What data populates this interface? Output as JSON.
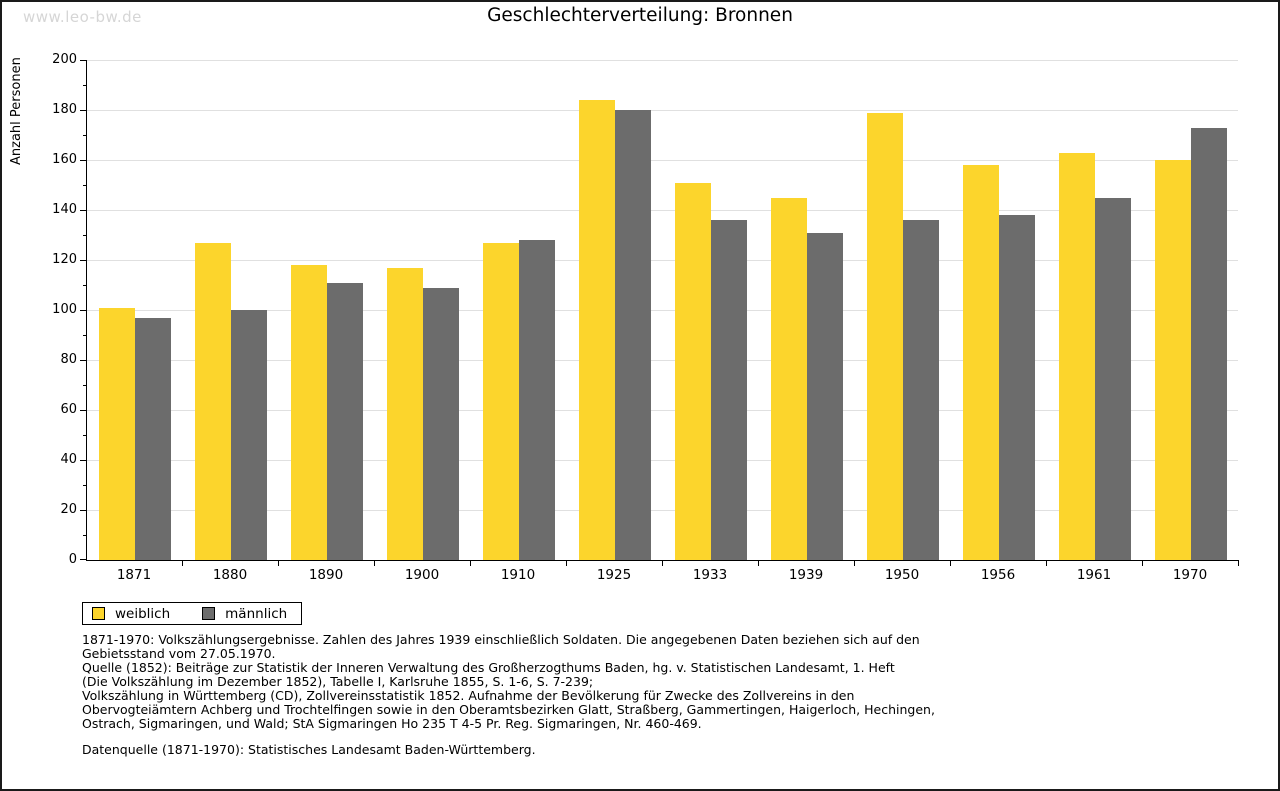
{
  "watermark": "www.leo-bw.de",
  "title": "Geschlechterverteilung: Bronnen",
  "chart_data": {
    "type": "bar",
    "title": "Geschlechterverteilung: Bronnen",
    "xlabel": "",
    "ylabel": "Anzahl Personen",
    "ylim": [
      0,
      200
    ],
    "ytick_step": 20,
    "ytick_minor_step": 10,
    "grid": "horizontal",
    "legend_position": "bottom-left",
    "categories": [
      "1871",
      "1880",
      "1890",
      "1900",
      "1910",
      "1925",
      "1933",
      "1939",
      "1950",
      "1956",
      "1961",
      "1970"
    ],
    "series": [
      {
        "name": "weiblich",
        "color": "#fcd52c",
        "values": [
          101,
          127,
          118,
          117,
          127,
          184,
          151,
          145,
          179,
          158,
          163,
          160
        ]
      },
      {
        "name": "männlich",
        "color": "#6c6c6c",
        "values": [
          97,
          100,
          111,
          109,
          128,
          180,
          136,
          131,
          136,
          138,
          145,
          173
        ]
      }
    ]
  },
  "legend": {
    "items": [
      {
        "label": "weiblich",
        "color": "#fcd52c"
      },
      {
        "label": "männlich",
        "color": "#6c6c6c"
      }
    ]
  },
  "footnotes": [
    "1871-1970: Volkszählungsergebnisse. Zahlen des Jahres 1939 einschließlich Soldaten. Die angegebenen Daten beziehen sich auf den",
    "Gebietsstand vom 27.05.1970.",
    "Quelle (1852): Beiträge zur Statistik der Inneren Verwaltung des Großherzogthums Baden, hg. v. Statistischen Landesamt, 1. Heft",
    "(Die Volkszählung im Dezember 1852), Tabelle I, Karlsruhe 1855, S. 1-6, S. 7-239;",
    "Volkszählung in Württemberg (CD), Zollvereinsstatistik 1852. Aufnahme der Bevölkerung für Zwecke des Zollvereins in den",
    "Obervogteiämtern Achberg und Trochtelfingen sowie in den Oberamtsbezirken Glatt, Straßberg, Gammertingen, Haigerloch, Hechingen,",
    "Ostrach, Sigmaringen, und Wald; StA Sigmaringen Ho 235 T 4-5 Pr. Reg. Sigmaringen, Nr. 460-469."
  ],
  "datasource": "Datenquelle (1871-1970): Statistisches Landesamt Baden-Württemberg.",
  "colors": {
    "gridline": "#e0e0e0",
    "axis": "#000000",
    "watermark": "#d6d6d6",
    "background": "#ffffff"
  }
}
